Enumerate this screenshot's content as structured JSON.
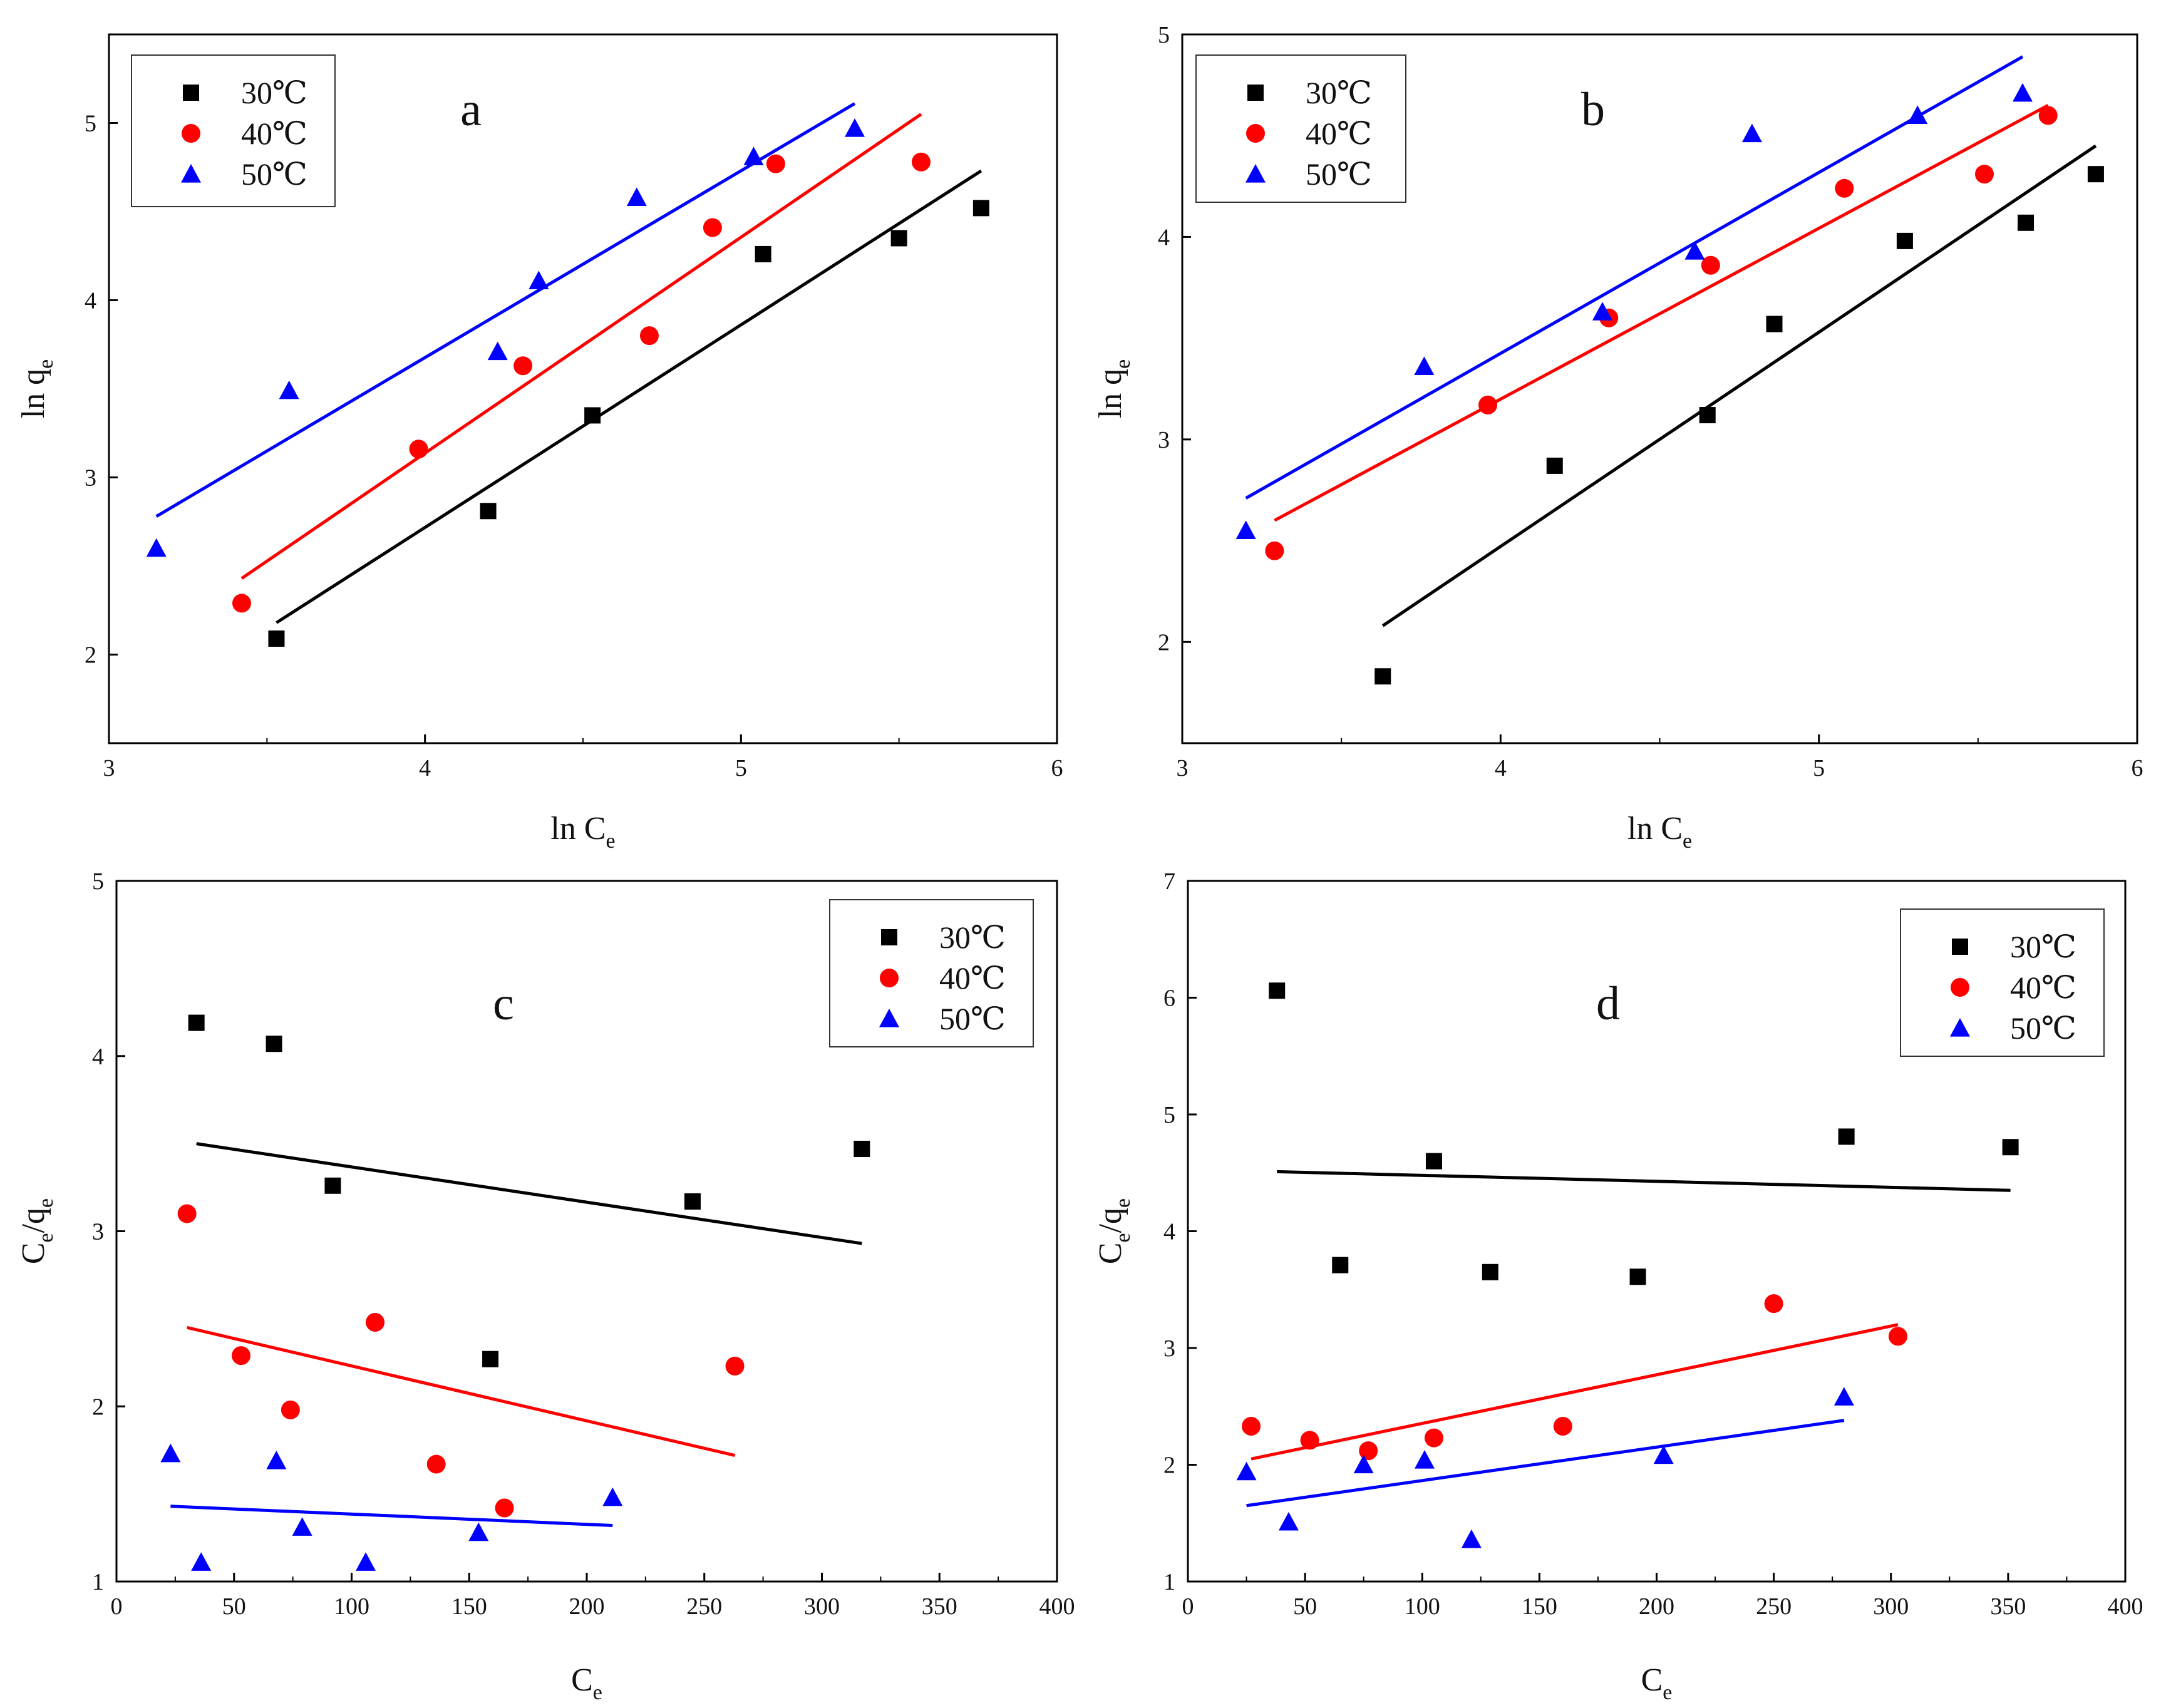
{
  "figure": {
    "series_colors": {
      "30℃": "#000000",
      "40℃": "#ff0000",
      "50℃": "#0000ff"
    }
  },
  "chart_data": [
    {
      "panel": "a",
      "type": "scatter",
      "title": "a",
      "xlabel": "ln C",
      "xlabel_sub": "e",
      "ylabel": "ln q",
      "ylabel_sub": "e",
      "xlim": [
        3,
        6
      ],
      "ylim": [
        1.5,
        5.5
      ],
      "xticks": [
        3,
        4,
        5,
        6
      ],
      "yticks": [
        2,
        3,
        4,
        5
      ],
      "tick_labels_x": [
        "3",
        "4",
        "5",
        "6"
      ],
      "tick_labels_y": [
        "2",
        "3",
        "4",
        "5"
      ],
      "legend_position": "top-left",
      "series": [
        {
          "name": "30℃",
          "marker": "square",
          "color": "#000000",
          "points": [
            [
              3.53,
              2.09
            ],
            [
              4.2,
              2.81
            ],
            [
              4.53,
              3.35
            ],
            [
              5.07,
              4.26
            ],
            [
              5.5,
              4.35
            ],
            [
              5.76,
              4.52
            ]
          ],
          "fit": [
            [
              3.53,
              2.18
            ],
            [
              5.76,
              4.73
            ]
          ]
        },
        {
          "name": "40℃",
          "marker": "circle",
          "color": "#ff0000",
          "points": [
            [
              3.42,
              2.29
            ],
            [
              3.98,
              3.16
            ],
            [
              4.31,
              3.63
            ],
            [
              4.71,
              3.8
            ],
            [
              4.91,
              4.41
            ],
            [
              5.11,
              4.77
            ],
            [
              5.57,
              4.78
            ]
          ],
          "fit": [
            [
              3.42,
              2.43
            ],
            [
              5.57,
              5.05
            ]
          ]
        },
        {
          "name": "50℃",
          "marker": "triangle",
          "color": "#0000ff",
          "points": [
            [
              3.15,
              2.6
            ],
            [
              3.57,
              3.49
            ],
            [
              4.23,
              3.71
            ],
            [
              4.36,
              4.11
            ],
            [
              4.67,
              4.58
            ],
            [
              5.04,
              4.81
            ],
            [
              5.36,
              4.97
            ]
          ],
          "fit": [
            [
              3.15,
              2.78
            ],
            [
              5.36,
              5.11
            ]
          ]
        }
      ]
    },
    {
      "panel": "b",
      "type": "scatter",
      "title": "b",
      "xlabel": "ln C",
      "xlabel_sub": "e",
      "ylabel": "ln q",
      "ylabel_sub": "e",
      "xlim": [
        3,
        6
      ],
      "ylim": [
        1.5,
        5
      ],
      "xticks": [
        3,
        4,
        5,
        6
      ],
      "yticks": [
        2,
        3,
        4,
        5
      ],
      "tick_labels_x": [
        "3",
        "4",
        "5",
        "6"
      ],
      "tick_labels_y": [
        "2",
        "3",
        "4",
        "5"
      ],
      "legend_position": "top-left",
      "series": [
        {
          "name": "30℃",
          "marker": "square",
          "color": "#000000",
          "points": [
            [
              3.63,
              1.83
            ],
            [
              4.17,
              2.87
            ],
            [
              4.65,
              3.12
            ],
            [
              4.86,
              3.57
            ],
            [
              5.27,
              3.98
            ],
            [
              5.65,
              4.07
            ],
            [
              5.87,
              4.31
            ]
          ],
          "fit": [
            [
              3.63,
              2.08
            ],
            [
              5.87,
              4.45
            ]
          ]
        },
        {
          "name": "40℃",
          "marker": "circle",
          "color": "#ff0000",
          "points": [
            [
              3.29,
              2.45
            ],
            [
              3.96,
              3.17
            ],
            [
              4.34,
              3.6
            ],
            [
              4.66,
              3.86
            ],
            [
              5.08,
              4.24
            ],
            [
              5.52,
              4.31
            ],
            [
              5.72,
              4.6
            ]
          ],
          "fit": [
            [
              3.29,
              2.6
            ],
            [
              5.72,
              4.65
            ]
          ]
        },
        {
          "name": "50℃",
          "marker": "triangle",
          "color": "#0000ff",
          "points": [
            [
              3.2,
              2.55
            ],
            [
              3.76,
              3.36
            ],
            [
              4.32,
              3.63
            ],
            [
              4.61,
              3.93
            ],
            [
              4.79,
              4.51
            ],
            [
              5.31,
              4.6
            ],
            [
              5.64,
              4.71
            ]
          ],
          "fit": [
            [
              3.2,
              2.71
            ],
            [
              5.64,
              4.89
            ]
          ]
        }
      ]
    },
    {
      "panel": "c",
      "type": "scatter",
      "title": "c",
      "xlabel": "C",
      "xlabel_sub": "e",
      "ylabel": "C",
      "ylabel_sub": "e",
      "ylabel_rest": "/q",
      "ylabel_sub2": "e",
      "xlim": [
        0,
        400
      ],
      "ylim": [
        1,
        5
      ],
      "xticks": [
        0,
        50,
        100,
        150,
        200,
        250,
        300,
        350,
        400
      ],
      "yticks": [
        1,
        2,
        3,
        4,
        5
      ],
      "tick_labels_x": [
        "0",
        "50",
        "100",
        "150",
        "200",
        "250",
        "300",
        "350",
        "400"
      ],
      "tick_labels_y": [
        "1",
        "2",
        "3",
        "4",
        "5"
      ],
      "legend_position": "top-right",
      "series": [
        {
          "name": "30℃",
          "marker": "square",
          "color": "#000000",
          "points": [
            [
              34,
              4.19
            ],
            [
              67,
              4.07
            ],
            [
              92,
              3.26
            ],
            [
              159,
              2.27
            ],
            [
              245,
              3.17
            ],
            [
              317,
              3.47
            ]
          ],
          "fit": [
            [
              34,
              3.5
            ],
            [
              317,
              2.93
            ]
          ]
        },
        {
          "name": "40℃",
          "marker": "circle",
          "color": "#ff0000",
          "points": [
            [
              30,
              3.1
            ],
            [
              53,
              2.29
            ],
            [
              74,
              1.98
            ],
            [
              110,
              2.48
            ],
            [
              136,
              1.67
            ],
            [
              165,
              1.42
            ],
            [
              263,
              2.23
            ]
          ],
          "fit": [
            [
              30,
              2.45
            ],
            [
              263,
              1.72
            ]
          ]
        },
        {
          "name": "50℃",
          "marker": "triangle",
          "color": "#0000ff",
          "points": [
            [
              23,
              1.73
            ],
            [
              36,
              1.11
            ],
            [
              68,
              1.69
            ],
            [
              79,
              1.31
            ],
            [
              106,
              1.11
            ],
            [
              154,
              1.28
            ],
            [
              211,
              1.48
            ]
          ],
          "fit": [
            [
              23,
              1.43
            ],
            [
              211,
              1.32
            ]
          ]
        }
      ]
    },
    {
      "panel": "d",
      "type": "scatter",
      "title": "d",
      "xlabel": "C",
      "xlabel_sub": "e",
      "ylabel": "C",
      "ylabel_sub": "e",
      "ylabel_rest": "/q",
      "ylabel_sub2": "e",
      "xlim": [
        0,
        400
      ],
      "ylim": [
        1,
        7
      ],
      "xticks": [
        0,
        50,
        100,
        150,
        200,
        250,
        300,
        350,
        400
      ],
      "yticks": [
        1,
        2,
        3,
        4,
        5,
        6,
        7
      ],
      "tick_labels_x": [
        "0",
        "50",
        "100",
        "150",
        "200",
        "250",
        "300",
        "350",
        "400"
      ],
      "tick_labels_y": [
        "1",
        "2",
        "3",
        "4",
        "5",
        "6",
        "7"
      ],
      "legend_position": "top-right",
      "series": [
        {
          "name": "30℃",
          "marker": "square",
          "color": "#000000",
          "points": [
            [
              38,
              6.06
            ],
            [
              65,
              3.71
            ],
            [
              105,
              4.6
            ],
            [
              129,
              3.65
            ],
            [
              192,
              3.61
            ],
            [
              281,
              4.81
            ],
            [
              351,
              4.72
            ]
          ],
          "fit": [
            [
              38,
              4.51
            ],
            [
              351,
              4.35
            ]
          ]
        },
        {
          "name": "40℃",
          "marker": "circle",
          "color": "#ff0000",
          "points": [
            [
              27,
              2.33
            ],
            [
              52,
              2.21
            ],
            [
              77,
              2.12
            ],
            [
              105,
              2.23
            ],
            [
              160,
              2.33
            ],
            [
              250,
              3.38
            ],
            [
              303,
              3.1
            ]
          ],
          "fit": [
            [
              27,
              2.05
            ],
            [
              303,
              3.2
            ]
          ]
        },
        {
          "name": "50℃",
          "marker": "triangle",
          "color": "#0000ff",
          "points": [
            [
              25,
              1.94
            ],
            [
              43,
              1.51
            ],
            [
              75,
              2.0
            ],
            [
              101,
              2.04
            ],
            [
              121,
              1.36
            ],
            [
              203,
              2.08
            ],
            [
              280,
              2.58
            ]
          ],
          "fit": [
            [
              25,
              1.65
            ],
            [
              280,
              2.38
            ]
          ]
        }
      ]
    }
  ]
}
